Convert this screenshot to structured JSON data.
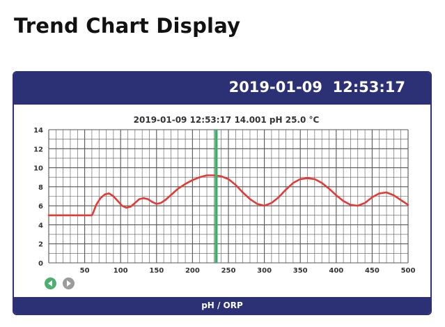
{
  "page": {
    "title": "Trend Chart Display"
  },
  "device": {
    "datetime": "2019-01-09  12:53:17",
    "footer_label": "pH / ORP",
    "nav": {
      "prev_icon": "arrow-left-icon",
      "next_icon": "arrow-right-icon"
    }
  },
  "chart_data": {
    "type": "line",
    "readout": "2019-01-09  12:53:17 14.001 pH  25.0 °C",
    "xlim": [
      0,
      500
    ],
    "ylim": [
      0,
      14
    ],
    "x_ticks": [
      50,
      100,
      150,
      200,
      250,
      300,
      350,
      400,
      450,
      500
    ],
    "y_ticks": [
      0,
      2,
      4,
      6,
      8,
      10,
      12,
      14
    ],
    "grid": true,
    "cursor_x": 233,
    "colors": {
      "line": "#e53935",
      "cursor": "#3cae6a",
      "grid": "#555555",
      "frame": "#2b3174"
    },
    "series": [
      {
        "x": [
          0,
          10,
          20,
          30,
          40,
          50,
          55,
          60,
          62,
          66,
          72,
          78,
          84,
          90,
          96,
          102,
          108,
          114,
          120,
          126,
          132,
          138,
          144,
          150,
          156,
          162,
          168,
          174,
          180,
          190,
          200,
          210,
          220,
          230,
          240,
          250,
          260,
          270,
          280,
          290,
          300,
          310,
          320,
          330,
          340,
          350,
          360,
          370,
          380,
          390,
          400,
          410,
          420,
          430,
          440,
          450,
          460,
          470,
          480,
          490,
          500
        ],
        "y": [
          5.0,
          5.0,
          5.0,
          5.0,
          5.0,
          5.0,
          5.0,
          5.0,
          5.3,
          6.1,
          6.8,
          7.2,
          7.3,
          7.0,
          6.5,
          6.0,
          5.8,
          5.9,
          6.3,
          6.7,
          6.8,
          6.7,
          6.4,
          6.2,
          6.3,
          6.6,
          7.0,
          7.4,
          7.8,
          8.3,
          8.7,
          9.0,
          9.2,
          9.2,
          9.1,
          8.8,
          8.2,
          7.4,
          6.7,
          6.2,
          6.0,
          6.3,
          6.9,
          7.7,
          8.4,
          8.8,
          8.9,
          8.8,
          8.4,
          7.8,
          7.1,
          6.5,
          6.1,
          6.0,
          6.3,
          6.9,
          7.3,
          7.4,
          7.1,
          6.6,
          6.1
        ]
      }
    ]
  }
}
